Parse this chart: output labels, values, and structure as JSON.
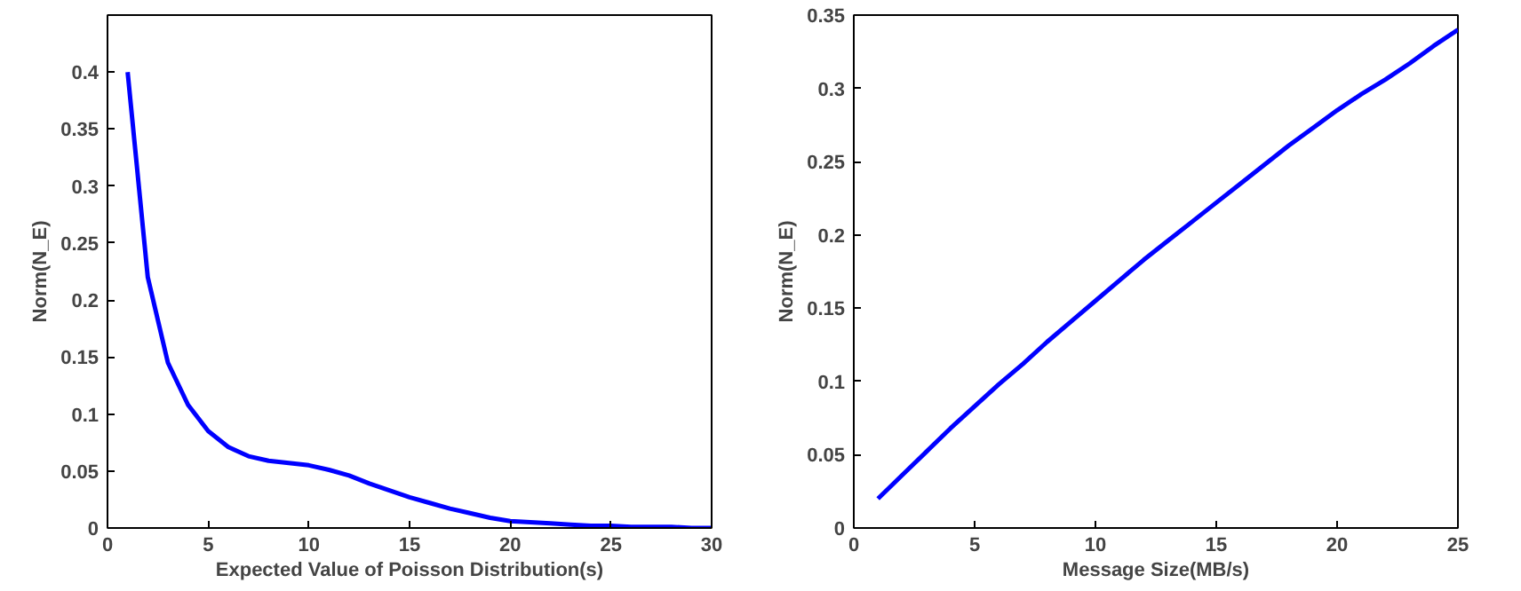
{
  "chart_data": [
    {
      "type": "line",
      "xlabel": "Expected Value of Poisson Distribution(s)",
      "ylabel": "Norm(N_E)",
      "x": [
        1,
        2,
        3,
        4,
        5,
        6,
        7,
        8,
        9,
        10,
        11,
        12,
        13,
        14,
        15,
        16,
        17,
        18,
        19,
        20,
        21,
        22,
        23,
        24,
        25,
        26,
        27,
        28,
        29,
        30
      ],
      "series": [
        {
          "color": "#0000ff",
          "values": [
            0.4,
            0.22,
            0.145,
            0.108,
            0.085,
            0.071,
            0.063,
            0.059,
            0.057,
            0.055,
            0.051,
            0.046,
            0.039,
            0.033,
            0.027,
            0.022,
            0.017,
            0.013,
            0.009,
            0.006,
            0.005,
            0.004,
            0.003,
            0.002,
            0.002,
            0.001,
            0.001,
            0.001,
            0,
            0
          ]
        }
      ],
      "xlim": [
        0,
        30
      ],
      "xticks": [
        0,
        5,
        10,
        15,
        20,
        25,
        30
      ],
      "ylim": [
        0,
        0.45
      ],
      "yticks": [
        0,
        0.05,
        0.1,
        0.15,
        0.2,
        0.25,
        0.3,
        0.35,
        0.4
      ],
      "grid": false,
      "marker": "none",
      "line_style": "solid"
    },
    {
      "type": "line",
      "xlabel": "Message Size(MB/s)",
      "ylabel": "Norm(N_E)",
      "x": [
        1,
        2,
        3,
        4,
        5,
        6,
        7,
        8,
        9,
        10,
        11,
        12,
        13,
        14,
        15,
        16,
        17,
        18,
        19,
        20,
        21,
        22,
        23,
        24,
        25
      ],
      "series": [
        {
          "color": "#0000ff",
          "values": [
            0.02,
            0.036,
            0.052,
            0.068,
            0.083,
            0.098,
            0.112,
            0.127,
            0.141,
            0.155,
            0.169,
            0.183,
            0.196,
            0.209,
            0.222,
            0.235,
            0.248,
            0.261,
            0.273,
            0.285,
            0.296,
            0.306,
            0.317,
            0.329,
            0.34
          ]
        }
      ],
      "xlim": [
        0,
        25
      ],
      "xticks": [
        0,
        5,
        10,
        15,
        20,
        25
      ],
      "ylim": [
        0,
        0.35
      ],
      "yticks": [
        0,
        0.05,
        0.1,
        0.15,
        0.2,
        0.25,
        0.3,
        0.35
      ],
      "grid": false,
      "marker": "none",
      "line_style": "solid"
    }
  ]
}
